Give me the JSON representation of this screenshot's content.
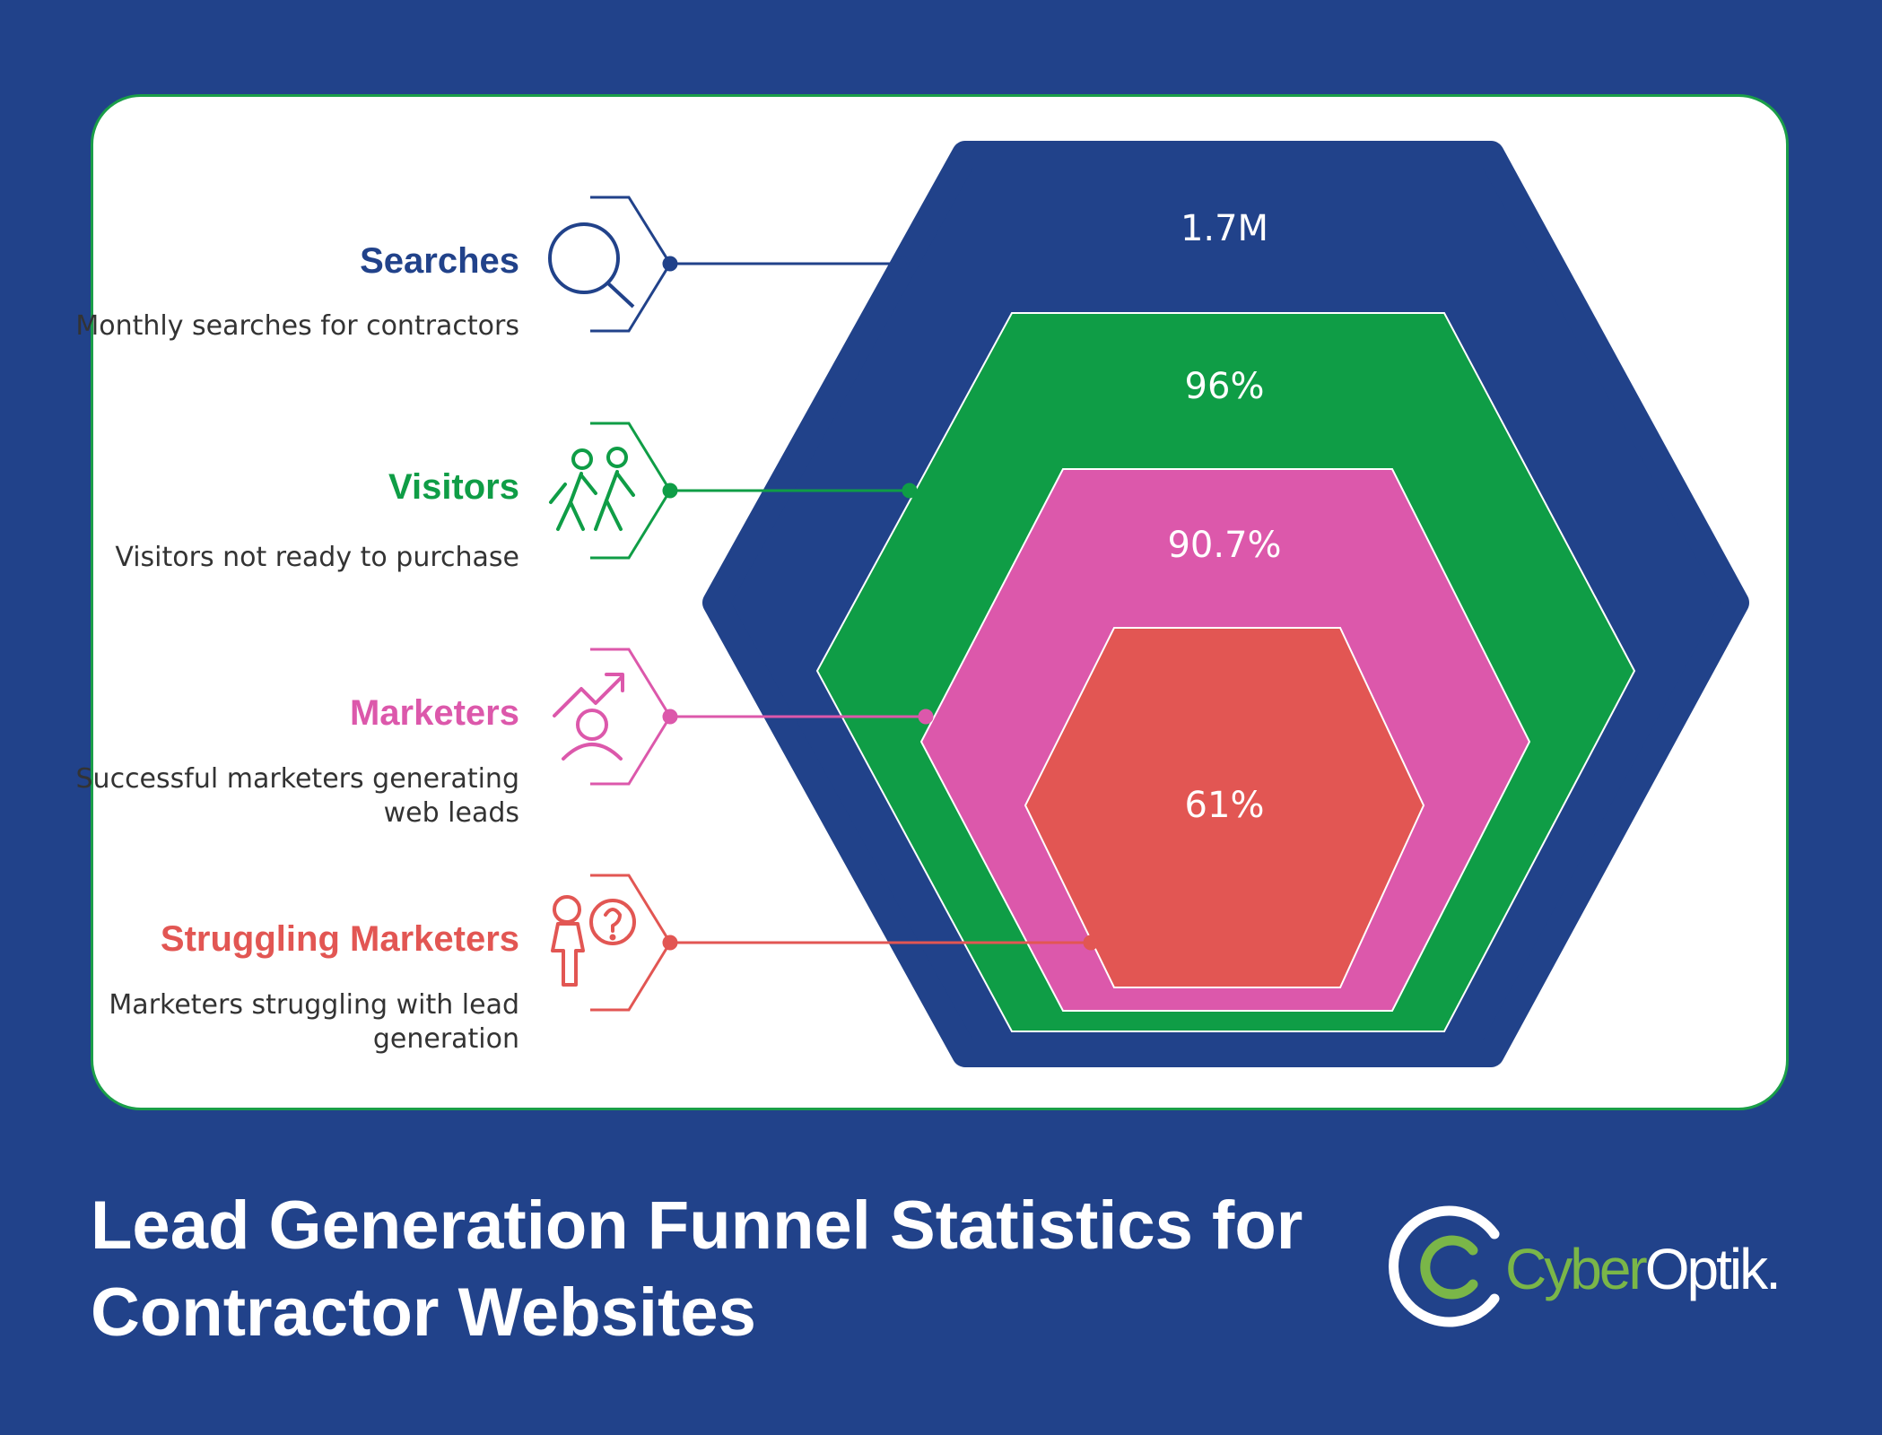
{
  "title": "Lead Generation Funnel Statistics for Contractor Websites",
  "logo": {
    "part1": "Cyber",
    "part2": "Optik.",
    "color1": "#7ab648",
    "color2": "#ffffff"
  },
  "colors": {
    "background": "#21428a",
    "card": "#ffffff",
    "card_border": "#1a9e48"
  },
  "stages": [
    {
      "label": "Searches",
      "description": "Monthly searches for contractors",
      "value": "1.7M",
      "color": "#21428a",
      "icon": "magnifier-icon"
    },
    {
      "label": "Visitors",
      "description": "Visitors not ready to purchase",
      "value": "96%",
      "color": "#0f9d46",
      "icon": "walking-people-icon"
    },
    {
      "label": "Marketers",
      "description": "Successful marketers generating web leads",
      "value": "90.7%",
      "color": "#dc58ab",
      "icon": "growth-person-icon"
    },
    {
      "label": "Struggling Marketers",
      "description": "Marketers struggling with lead generation",
      "value": "61%",
      "color": "#e25653",
      "icon": "question-person-icon"
    }
  ]
}
